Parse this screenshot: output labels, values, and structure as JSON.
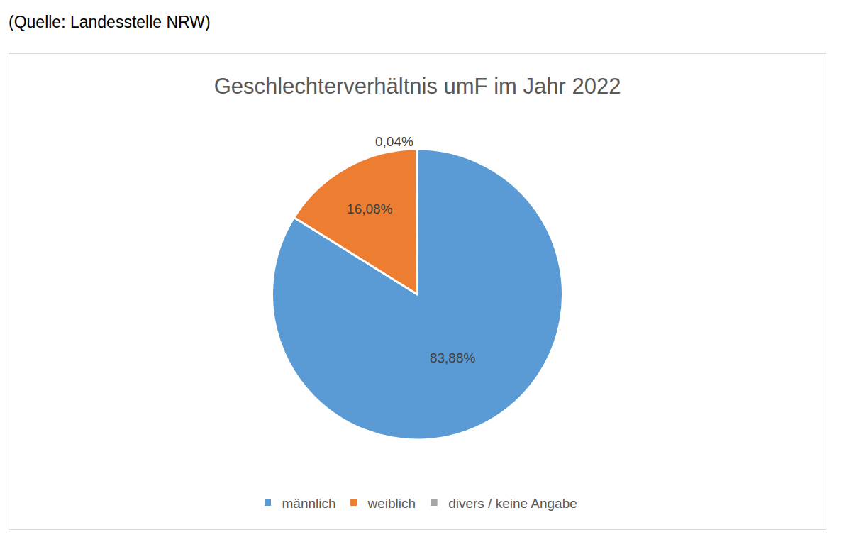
{
  "chart_data": {
    "type": "pie",
    "title": "Geschlechterverhältnis umF im Jahr 2022",
    "annotations": [
      "(Quelle: Landesstelle NRW)"
    ],
    "categories": [
      "männlich",
      "weiblich",
      "divers / keine Angabe"
    ],
    "values": [
      83.88,
      16.08,
      0.04
    ],
    "value_labels": [
      "83,88%",
      "16,08%",
      "0,04%"
    ],
    "colors": [
      "#5b9bd5",
      "#ed7d31",
      "#a5a5a5"
    ],
    "data_labels": true,
    "legend": "bottom"
  }
}
